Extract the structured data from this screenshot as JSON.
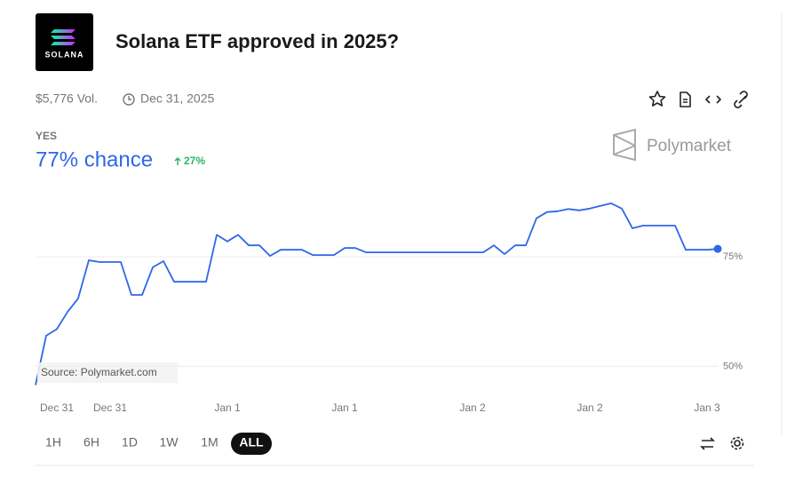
{
  "header": {
    "logo_text": "SOLANA",
    "title": "Solana ETF approved in 2025?",
    "volume": "$5,776 Vol.",
    "end_date": "Dec 31, 2025"
  },
  "outcome": {
    "label": "YES",
    "chance": "77% chance",
    "change": "27%"
  },
  "brand": "Polymarket",
  "chart_data": {
    "type": "line",
    "color": "#2e67e8",
    "annotation": "Source: Polymarket.com",
    "categories": [
      null,
      null,
      "Dec 31",
      null,
      null,
      null,
      null,
      "Dec 31",
      null,
      null,
      null,
      null,
      null,
      null,
      null,
      null,
      null,
      null,
      "Jan 1",
      null,
      null,
      null,
      null,
      null,
      null,
      null,
      null,
      null,
      null,
      "Jan 1",
      null,
      null,
      null,
      null,
      null,
      null,
      null,
      null,
      null,
      null,
      null,
      "Jan 2",
      null,
      null,
      null,
      null,
      null,
      null,
      null,
      null,
      null,
      null,
      "Jan 2",
      null,
      null,
      null,
      null,
      null,
      null,
      null,
      null,
      null,
      null,
      "Jan 3",
      null
    ],
    "values": [
      45.7,
      57,
      58.5,
      62.4,
      65.5,
      74.2,
      73.8,
      73.8,
      73.8,
      66.3,
      66.3,
      72.6,
      74,
      69.3,
      69.3,
      69.3,
      69.3,
      80,
      78.5,
      80,
      77.6,
      77.6,
      75.2,
      76.6,
      76.6,
      76.6,
      75.4,
      75.4,
      75.4,
      77,
      77,
      76,
      76,
      76,
      76,
      76,
      76,
      76,
      76,
      76,
      76,
      76,
      76,
      77.6,
      75.6,
      77.6,
      77.6,
      83.8,
      85.2,
      85.4,
      85.9,
      85.6,
      86,
      86.6,
      87.2,
      86,
      81.5,
      82.1,
      82.1,
      82.1,
      82.1,
      76.6,
      76.6,
      76.6,
      76.8
    ],
    "ylim": [
      44,
      89
    ],
    "yticks": [
      {
        "value": 50,
        "label": "50%"
      },
      {
        "value": 75,
        "label": "75%"
      }
    ],
    "grid": true
  },
  "time_ranges": [
    "1H",
    "6H",
    "1D",
    "1W",
    "1M",
    "ALL"
  ],
  "selected_range": 5
}
